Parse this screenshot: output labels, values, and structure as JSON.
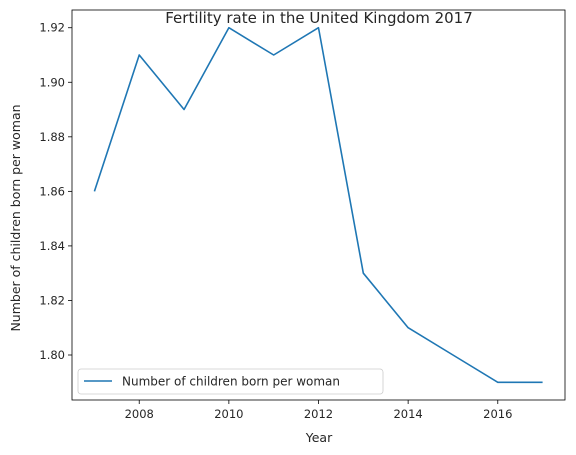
{
  "chart_data": {
    "type": "line",
    "title": "Fertility rate in the United Kingdom 2017",
    "xlabel": "Year",
    "ylabel": "Number of children born per woman",
    "x": [
      2007,
      2008,
      2009,
      2010,
      2011,
      2012,
      2013,
      2014,
      2015,
      2016,
      2017
    ],
    "series": [
      {
        "name": "Number of children born per woman",
        "color": "#1f77b4",
        "values": [
          1.86,
          1.91,
          1.89,
          1.92,
          1.91,
          1.92,
          1.83,
          1.81,
          1.8,
          1.79,
          1.79
        ]
      }
    ],
    "xlim": [
      2006.5,
      2017.5
    ],
    "ylim": [
      1.7835,
      1.9265
    ],
    "xticks": [
      2008,
      2010,
      2012,
      2014,
      2016
    ],
    "xtick_labels": [
      "2008",
      "2010",
      "2012",
      "2014",
      "2016"
    ],
    "yticks": [
      1.8,
      1.82,
      1.84,
      1.86,
      1.88,
      1.9,
      1.92
    ],
    "ytick_labels": [
      "1.80",
      "1.82",
      "1.84",
      "1.86",
      "1.88",
      "1.90",
      "1.92"
    ],
    "grid": false,
    "legend_position": "lower-left"
  }
}
